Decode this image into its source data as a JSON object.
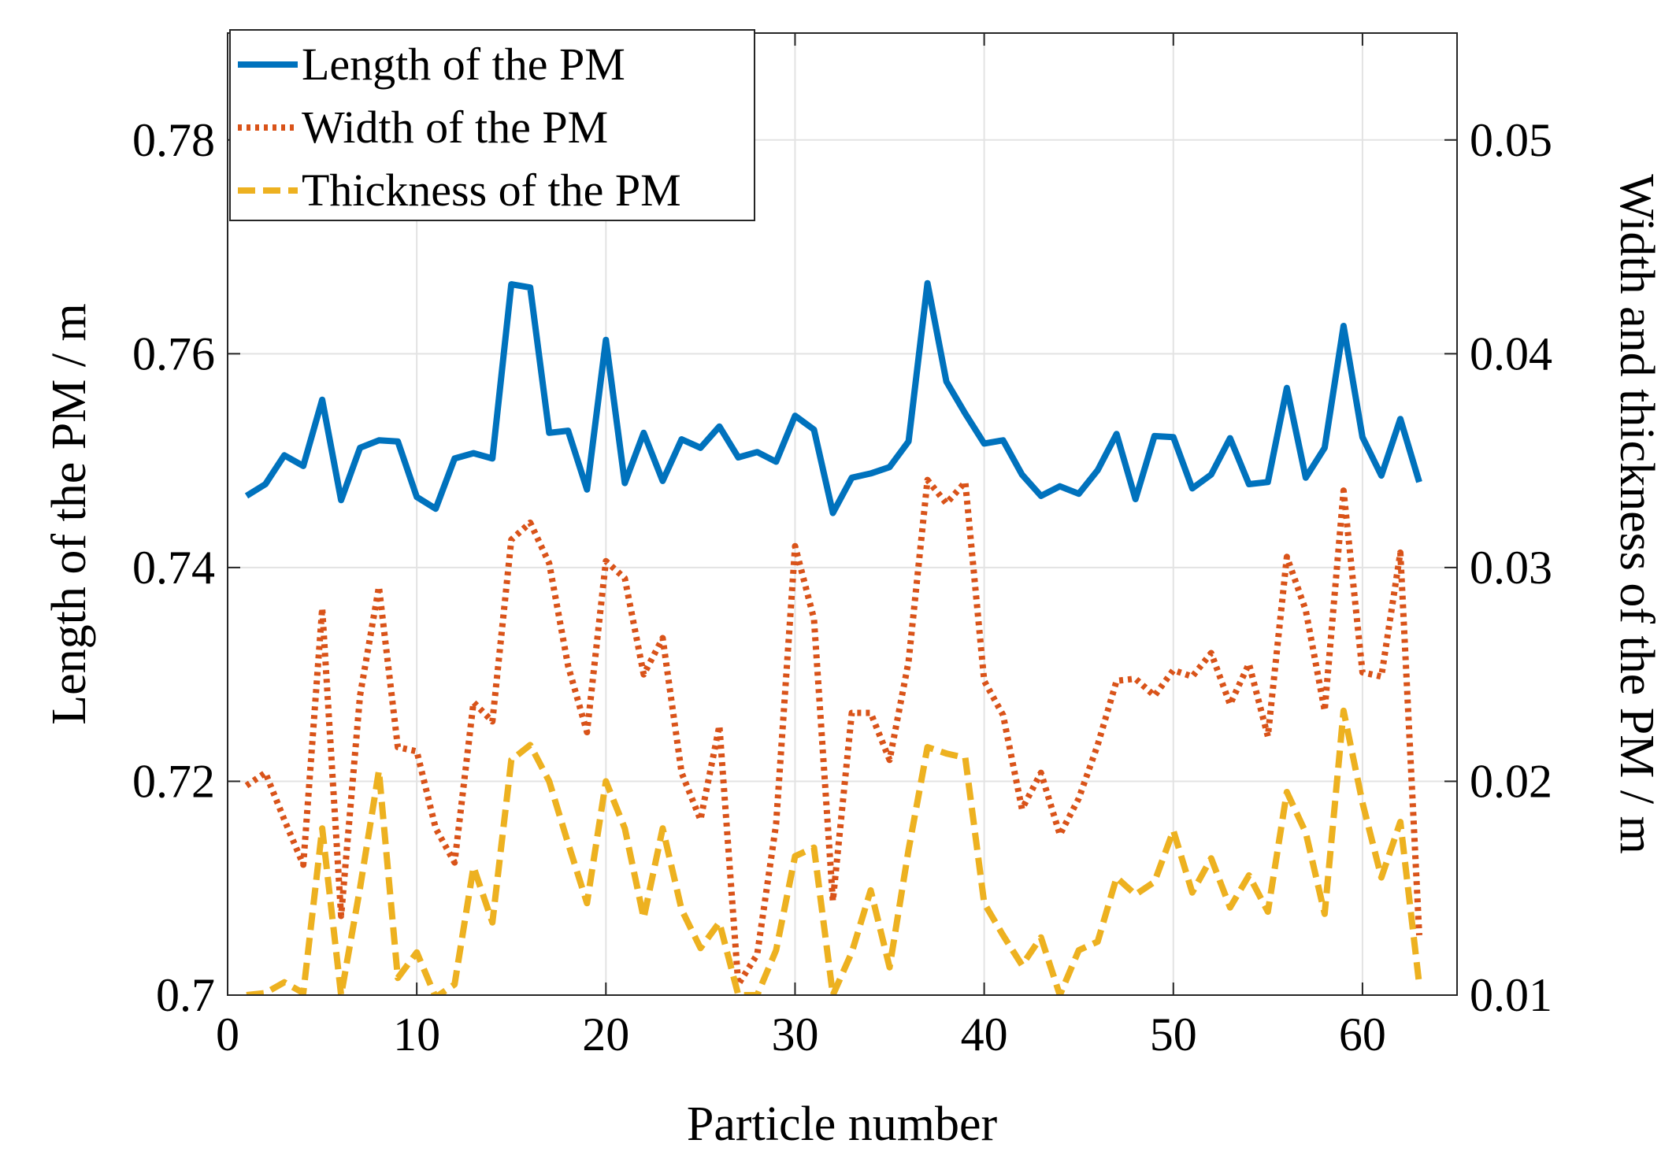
{
  "chart_data": {
    "type": "line",
    "title": "",
    "xlabel": "Particle number",
    "ylabel_left": "Length of the PM / m",
    "ylabel_right": "Width and thickness of the PM / m",
    "xlim": [
      0,
      65
    ],
    "ylim_left": [
      0.7,
      0.79
    ],
    "ylim_right": [
      0.01,
      0.055
    ],
    "x_ticks": [
      0,
      10,
      20,
      30,
      40,
      50,
      60
    ],
    "x_tick_labels": [
      "0",
      "10",
      "20",
      "30",
      "40",
      "50",
      "60"
    ],
    "y_left_ticks": [
      0.7,
      0.72,
      0.74,
      0.76,
      0.78
    ],
    "y_left_tick_labels": [
      "0.7",
      "0.72",
      "0.74",
      "0.76",
      "0.78"
    ],
    "y_right_ticks": [
      0.01,
      0.02,
      0.03,
      0.04,
      0.05
    ],
    "y_right_tick_labels": [
      "0.01",
      "0.02",
      "0.03",
      "0.04",
      "0.05"
    ],
    "grid": true,
    "legend_position": "top-left",
    "colors": {
      "length": "#0072BD",
      "width": "#D95319",
      "thickness": "#EDB120",
      "grid": "#e3e3e3",
      "axis": "#262626"
    },
    "series": [
      {
        "key": "length",
        "name": "Length of the PM",
        "axis": "left",
        "style": "solid",
        "x": [
          1,
          2,
          3,
          4,
          5,
          6,
          7,
          8,
          9,
          10,
          11,
          12,
          13,
          14,
          15,
          16,
          17,
          18,
          19,
          20,
          21,
          22,
          23,
          24,
          25,
          26,
          27,
          28,
          29,
          30,
          31,
          32,
          33,
          34,
          35,
          36,
          37,
          38,
          39,
          40,
          41,
          42,
          43,
          44,
          45,
          46,
          47,
          48,
          49,
          50,
          51,
          52,
          53,
          54,
          55,
          56,
          57,
          58,
          59,
          60,
          61,
          62,
          63
        ],
        "values": [
          0.7467,
          0.7478,
          0.7505,
          0.7495,
          0.7557,
          0.7463,
          0.7512,
          0.7519,
          0.7518,
          0.7466,
          0.7455,
          0.7502,
          0.7507,
          0.7502,
          0.7665,
          0.7662,
          0.7526,
          0.7528,
          0.7473,
          0.7613,
          0.7479,
          0.7526,
          0.7481,
          0.752,
          0.7512,
          0.7532,
          0.7503,
          0.7508,
          0.7499,
          0.7542,
          0.7529,
          0.7451,
          0.7484,
          0.7488,
          0.7494,
          0.7518,
          0.7666,
          0.7574,
          0.7544,
          0.7516,
          0.7519,
          0.7487,
          0.7467,
          0.7476,
          0.7469,
          0.7491,
          0.7525,
          0.7464,
          0.7523,
          0.7522,
          0.7474,
          0.7487,
          0.7521,
          0.7478,
          0.748,
          0.7568,
          0.7484,
          0.7512,
          0.7626,
          0.7522,
          0.7486,
          0.7539,
          0.748
        ]
      },
      {
        "key": "width",
        "name": "Width of the PM",
        "axis": "right",
        "style": "dotted",
        "x": [
          1,
          2,
          3,
          4,
          5,
          6,
          7,
          8,
          9,
          10,
          11,
          12,
          13,
          14,
          15,
          16,
          17,
          18,
          19,
          20,
          21,
          22,
          23,
          24,
          25,
          26,
          27,
          28,
          29,
          30,
          31,
          32,
          33,
          34,
          35,
          36,
          37,
          38,
          39,
          40,
          41,
          42,
          43,
          44,
          45,
          46,
          47,
          48,
          49,
          50,
          51,
          52,
          53,
          54,
          55,
          56,
          57,
          58,
          59,
          60,
          61,
          62,
          63
        ],
        "values": [
          0.0198,
          0.0204,
          0.0182,
          0.0161,
          0.0281,
          0.0137,
          0.024,
          0.0291,
          0.0216,
          0.0214,
          0.0178,
          0.0162,
          0.0237,
          0.0228,
          0.0313,
          0.0321,
          0.0302,
          0.0254,
          0.0223,
          0.0303,
          0.0295,
          0.025,
          0.0267,
          0.0204,
          0.0182,
          0.0226,
          0.0105,
          0.0119,
          0.018,
          0.031,
          0.0276,
          0.0144,
          0.0232,
          0.0232,
          0.021,
          0.0256,
          0.0341,
          0.033,
          0.034,
          0.0247,
          0.0231,
          0.0187,
          0.0204,
          0.0175,
          0.0192,
          0.0217,
          0.0247,
          0.0248,
          0.024,
          0.0252,
          0.0249,
          0.026,
          0.0236,
          0.0255,
          0.0221,
          0.0305,
          0.028,
          0.0233,
          0.0336,
          0.0251,
          0.0249,
          0.0307,
          0.0128
        ]
      },
      {
        "key": "thickness",
        "name": "Thickness of the PM",
        "axis": "right",
        "style": "dashed",
        "x": [
          1,
          2,
          3,
          4,
          5,
          6,
          7,
          8,
          9,
          10,
          11,
          12,
          13,
          14,
          15,
          16,
          17,
          18,
          19,
          20,
          21,
          22,
          23,
          24,
          25,
          26,
          27,
          28,
          29,
          30,
          31,
          32,
          33,
          34,
          35,
          36,
          37,
          38,
          39,
          40,
          41,
          42,
          43,
          44,
          45,
          46,
          47,
          48,
          49,
          50,
          51,
          52,
          53,
          54,
          55,
          56,
          57,
          58,
          59,
          60,
          61,
          62,
          63
        ],
        "values": [
          0.01,
          0.0101,
          0.0106,
          0.0101,
          0.0178,
          0.01,
          0.015,
          0.0205,
          0.0108,
          0.012,
          0.0099,
          0.0105,
          0.016,
          0.0134,
          0.021,
          0.0217,
          0.02,
          0.0171,
          0.0143,
          0.02,
          0.0178,
          0.0136,
          0.0178,
          0.014,
          0.0122,
          0.0134,
          0.01,
          0.01,
          0.0121,
          0.0165,
          0.0169,
          0.01,
          0.012,
          0.0149,
          0.0113,
          0.0168,
          0.0216,
          0.0213,
          0.0211,
          0.0143,
          0.0128,
          0.0114,
          0.0127,
          0.01,
          0.0121,
          0.0125,
          0.0155,
          0.0147,
          0.0153,
          0.0177,
          0.0148,
          0.0164,
          0.0141,
          0.0156,
          0.0139,
          0.0195,
          0.0176,
          0.0138,
          0.0233,
          0.019,
          0.0155,
          0.0181,
          0.0105
        ]
      }
    ]
  }
}
